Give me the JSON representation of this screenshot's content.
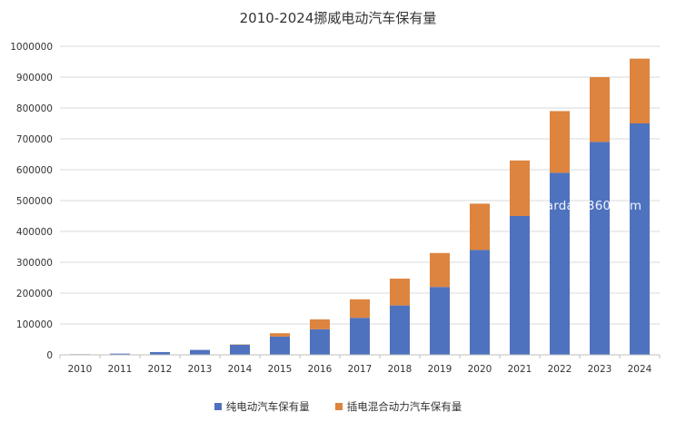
{
  "chart_data": {
    "type": "bar",
    "stacked": true,
    "title": "2010-2024挪威电动汽车保有量",
    "categories": [
      "2010",
      "2011",
      "2012",
      "2013",
      "2014",
      "2015",
      "2016",
      "2017",
      "2018",
      "2019",
      "2020",
      "2021",
      "2022",
      "2023",
      "2024"
    ],
    "series": [
      {
        "name": "纯电动汽车保有量",
        "color": "#4f72be",
        "values": [
          2000,
          4000,
          9000,
          16000,
          33000,
          59000,
          83000,
          120000,
          160000,
          220000,
          340000,
          450000,
          590000,
          690000,
          750000
        ]
      },
      {
        "name": "插电混合动力汽车保有量",
        "color": "#dd843f",
        "values": [
          0,
          0,
          0,
          0,
          1000,
          11000,
          32000,
          60000,
          87000,
          110000,
          150000,
          180000,
          200000,
          210000,
          210000
        ]
      }
    ],
    "ylim": [
      0,
      1000000
    ],
    "yticks": [
      0,
      100000,
      200000,
      300000,
      400000,
      500000,
      600000,
      700000,
      800000,
      900000,
      1000000
    ],
    "ytick_labels": [
      "0",
      "100000",
      "200000",
      "300000",
      "400000",
      "500000",
      "600000",
      "700000",
      "800000",
      "900000",
      "1000000"
    ],
    "grid": true,
    "legend_position": "bottom-center",
    "watermark": "stardata360.com"
  }
}
